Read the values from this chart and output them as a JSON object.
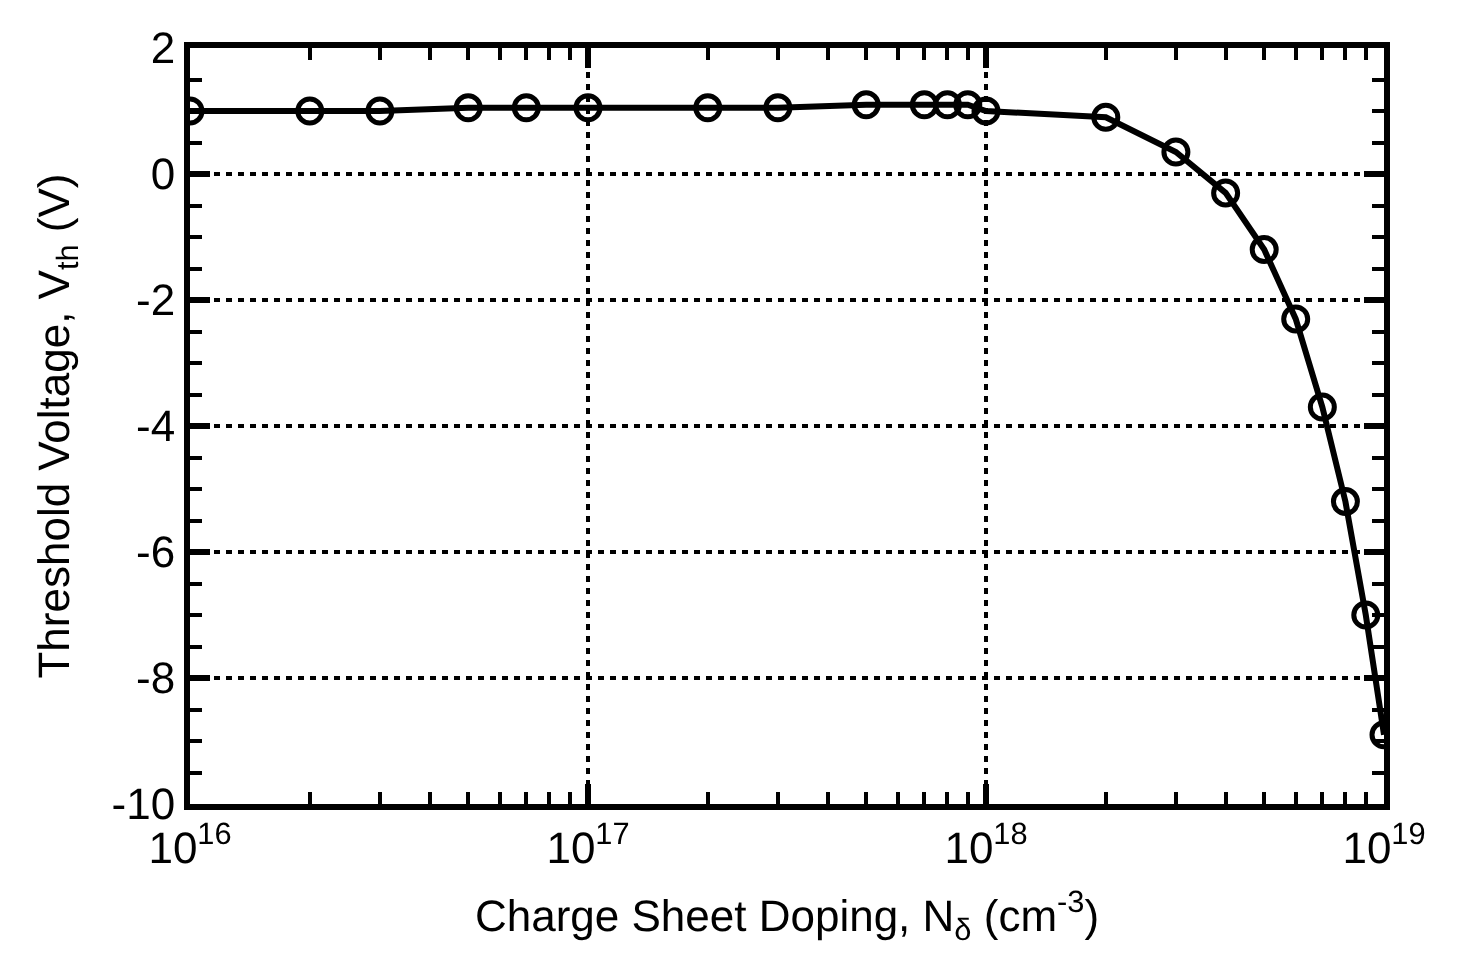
{
  "chart_data": {
    "type": "line",
    "xlabel": "Charge Sheet Doping, N$_{δ}$ (cm$^{-3}$)",
    "ylabel": "Threshold Voltage, V$_{th}$ (V)",
    "x": [
      1e+16,
      2e+16,
      3e+16,
      5e+16,
      7e+16,
      1e+17,
      2e+17,
      3e+17,
      5e+17,
      7e+17,
      8e+17,
      9e+17,
      1e+18,
      2e+18,
      3e+18,
      4e+18,
      5e+18,
      6e+18,
      7e+18,
      8e+18,
      9e+18,
      1e+19
    ],
    "series": [
      {
        "color": "#000000",
        "values": [
          1.0,
          1.0,
          1.0,
          1.05,
          1.05,
          1.05,
          1.05,
          1.05,
          1.1,
          1.1,
          1.1,
          1.1,
          1.0,
          0.9,
          0.35,
          -0.3,
          -1.2,
          -2.3,
          -3.7,
          -5.2,
          -7.0,
          -8.9
        ]
      }
    ],
    "log": "x",
    "xlim": [
      1e+16,
      1e+19
    ],
    "xticks": [
      {
        "value": 1e+16,
        "label": "10$^{16}$"
      },
      {
        "value": 1e+17,
        "label": "10$^{17}$"
      },
      {
        "value": 1e+18,
        "label": "10$^{18}$"
      },
      {
        "value": 1e+19,
        "label": "10$^{19}$"
      }
    ],
    "ylim": [
      -10,
      2
    ],
    "yticks": [
      -10,
      -8,
      -6,
      -4,
      -2,
      0,
      2
    ],
    "grid": true,
    "marker": "circle",
    "line_style": "solid"
  }
}
